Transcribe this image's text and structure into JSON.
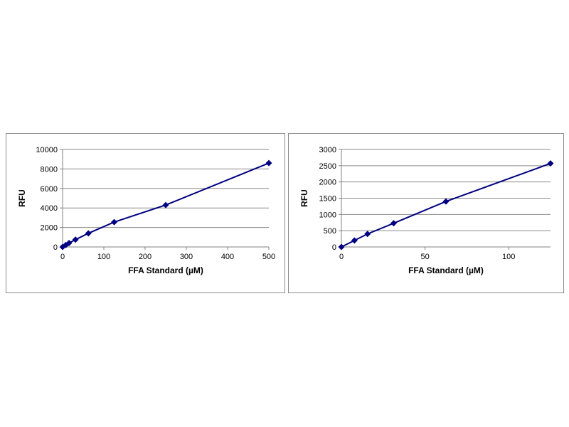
{
  "chart_data": [
    {
      "type": "line",
      "xlabel": "FFA Standard (µM)",
      "ylabel": "RFU",
      "xlim": [
        0,
        500
      ],
      "ylim": [
        0,
        10000
      ],
      "xticks": [
        0,
        100,
        200,
        300,
        400,
        500
      ],
      "yticks": [
        0,
        2000,
        4000,
        6000,
        8000,
        10000
      ],
      "grid": "horizontal",
      "legend": "none",
      "series": [
        {
          "x": [
            0,
            7.8,
            15.6,
            31.25,
            62.5,
            125,
            250,
            500
          ],
          "y": [
            0,
            200,
            400,
            750,
            1400,
            2550,
            4300,
            8600
          ],
          "marker": "diamond",
          "color": "#000080"
        }
      ]
    },
    {
      "type": "line",
      "xlabel": "FFA Standard (µM)",
      "ylabel": "RFU",
      "xlim": [
        0,
        125
      ],
      "ylim": [
        0,
        3000
      ],
      "xticks": [
        0,
        50,
        100
      ],
      "yticks": [
        0,
        500,
        1000,
        1500,
        2000,
        2500,
        3000
      ],
      "grid": "horizontal",
      "legend": "none",
      "series": [
        {
          "x": [
            0,
            7.8,
            15.6,
            31.25,
            62.5,
            125
          ],
          "y": [
            0,
            200,
            400,
            730,
            1400,
            2570
          ],
          "marker": "diamond",
          "color": "#000080"
        }
      ]
    }
  ]
}
